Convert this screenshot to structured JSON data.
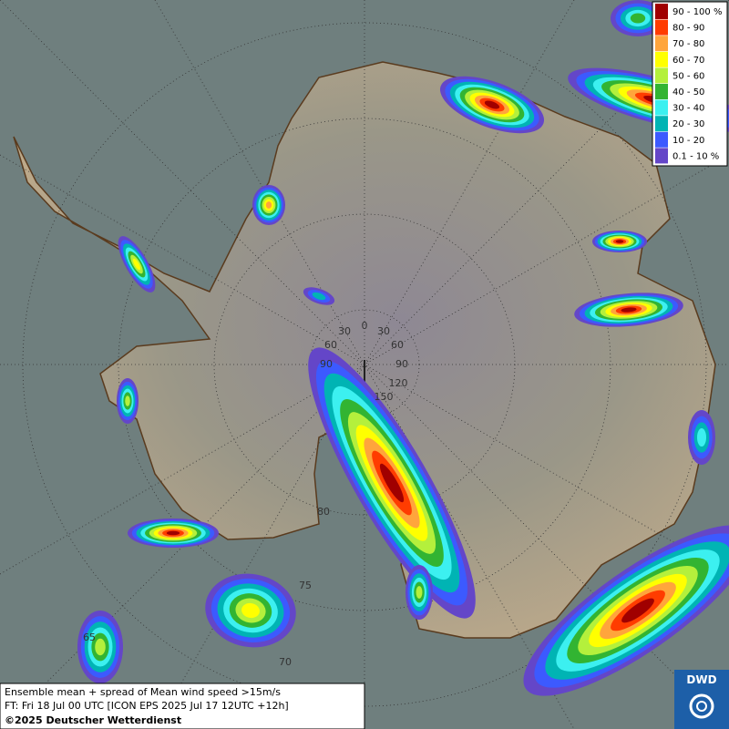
{
  "info": {
    "line1": "Ensemble mean + spread of Mean wind speed >15m/s",
    "line2": "FT: Fri 18 Jul 00 UTC [ICON EPS 2025 Jul 17 12UTC +12h]",
    "line3": "©2025 Deutscher Wetterdienst"
  },
  "logo": "DWD",
  "legend": [
    {
      "label": "90 - 100 %",
      "color": "#a00000"
    },
    {
      "label": "80 - 90",
      "color": "#ff3c00"
    },
    {
      "label": "70 - 80",
      "color": "#ffa53c"
    },
    {
      "label": "60 - 70",
      "color": "#ffff00"
    },
    {
      "label": "50 - 60",
      "color": "#b4f03c"
    },
    {
      "label": "40 - 50",
      "color": "#32b432"
    },
    {
      "label": "30 - 40",
      "color": "#3cf0f0"
    },
    {
      "label": "20 - 30",
      "color": "#00b4b4"
    },
    {
      "label": "10 - 20",
      "color": "#3c5aff"
    },
    {
      "label": "0.1 - 10 %",
      "color": "#6446c8"
    }
  ],
  "grid_labels": [
    "30",
    "0",
    "30",
    "60",
    "60",
    "90",
    "90",
    "120",
    "150",
    "80",
    "75",
    "70",
    "65"
  ]
}
